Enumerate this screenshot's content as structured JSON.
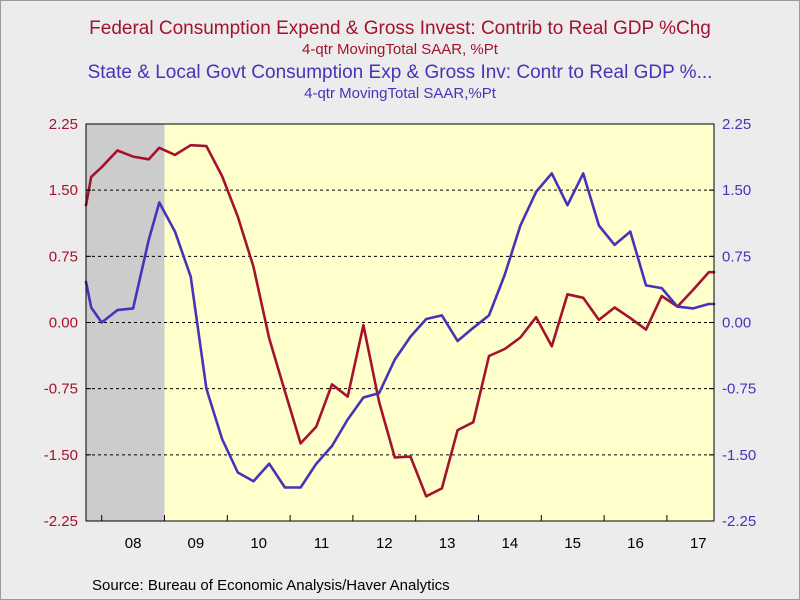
{
  "titles": {
    "line1": "Federal Consumption Expend & Gross Invest: Contrib to Real GDP %Chg",
    "sub1": "4-qtr MovingTotal      SAAR, %Pt",
    "line2": "State & Local Govt Consumption Exp & Gross Inv: Contr to Real GDP %...",
    "sub2": "4-qtr MovingTotal      SAAR,%Pt"
  },
  "source": "Source:  Bureau of Economic Analysis/Haver Analytics",
  "colors": {
    "federal": "#a4122e",
    "state_local": "#4733b8",
    "plot_bg": "#ffffcc",
    "recession": "#cccccc"
  },
  "chart_data": {
    "type": "line",
    "title": "",
    "xlabel": "",
    "ylabel": "",
    "ylim": [
      -2.25,
      2.25
    ],
    "xlim": [
      2007.75,
      2017.75
    ],
    "y_ticks": [
      "2.25",
      "1.50",
      "0.75",
      "0.00",
      "-0.75",
      "-1.50",
      "-2.25"
    ],
    "x_tick_labels": [
      "08",
      "09",
      "10",
      "11",
      "12",
      "13",
      "14",
      "15",
      "16",
      "17"
    ],
    "grid": "horizontal dashed",
    "recession_shading": [
      2007.75,
      2009.0
    ],
    "x": [
      2007.75,
      2007.833,
      2008.0,
      2008.25,
      2008.5,
      2008.75,
      2008.917,
      2009.167,
      2009.417,
      2009.667,
      2009.917,
      2010.167,
      2010.417,
      2010.667,
      2010.917,
      2011.167,
      2011.417,
      2011.667,
      2011.917,
      2012.167,
      2012.417,
      2012.667,
      2012.917,
      2013.167,
      2013.417,
      2013.667,
      2013.917,
      2014.167,
      2014.417,
      2014.667,
      2014.917,
      2015.167,
      2015.417,
      2015.667,
      2015.917,
      2016.167,
      2016.417,
      2016.667,
      2016.917,
      2017.167,
      2017.417,
      2017.667,
      2017.75
    ],
    "series": [
      {
        "values": [
          1.33,
          1.65,
          1.76,
          1.95,
          1.88,
          1.85,
          1.98,
          1.9,
          2.01,
          2.0,
          1.66,
          1.2,
          0.63,
          -0.18,
          -0.78,
          -1.37,
          -1.18,
          -0.7,
          -0.84,
          -0.03,
          -0.9,
          -1.53,
          -1.52,
          -1.97,
          -1.88,
          -1.22,
          -1.13,
          -0.38,
          -0.3,
          -0.17,
          0.06,
          -0.27,
          0.32,
          0.28,
          0.03,
          0.17,
          0.05,
          -0.08,
          0.3,
          0.18,
          0.37,
          0.57,
          0.57
        ],
        "color": "#a4122e"
      },
      {
        "values": [
          0.46,
          0.17,
          0.0,
          0.14,
          0.16,
          0.94,
          1.36,
          1.03,
          0.52,
          -0.75,
          -1.32,
          -1.7,
          -1.8,
          -1.6,
          -1.87,
          -1.87,
          -1.6,
          -1.4,
          -1.1,
          -0.85,
          -0.8,
          -0.42,
          -0.16,
          0.04,
          0.08,
          -0.21,
          -0.06,
          0.08,
          0.54,
          1.1,
          1.48,
          1.69,
          1.33,
          1.69,
          1.1,
          0.88,
          1.03,
          0.42,
          0.39,
          0.18,
          0.16,
          0.21,
          0.21
        ],
        "color": "#4733b8"
      }
    ]
  }
}
